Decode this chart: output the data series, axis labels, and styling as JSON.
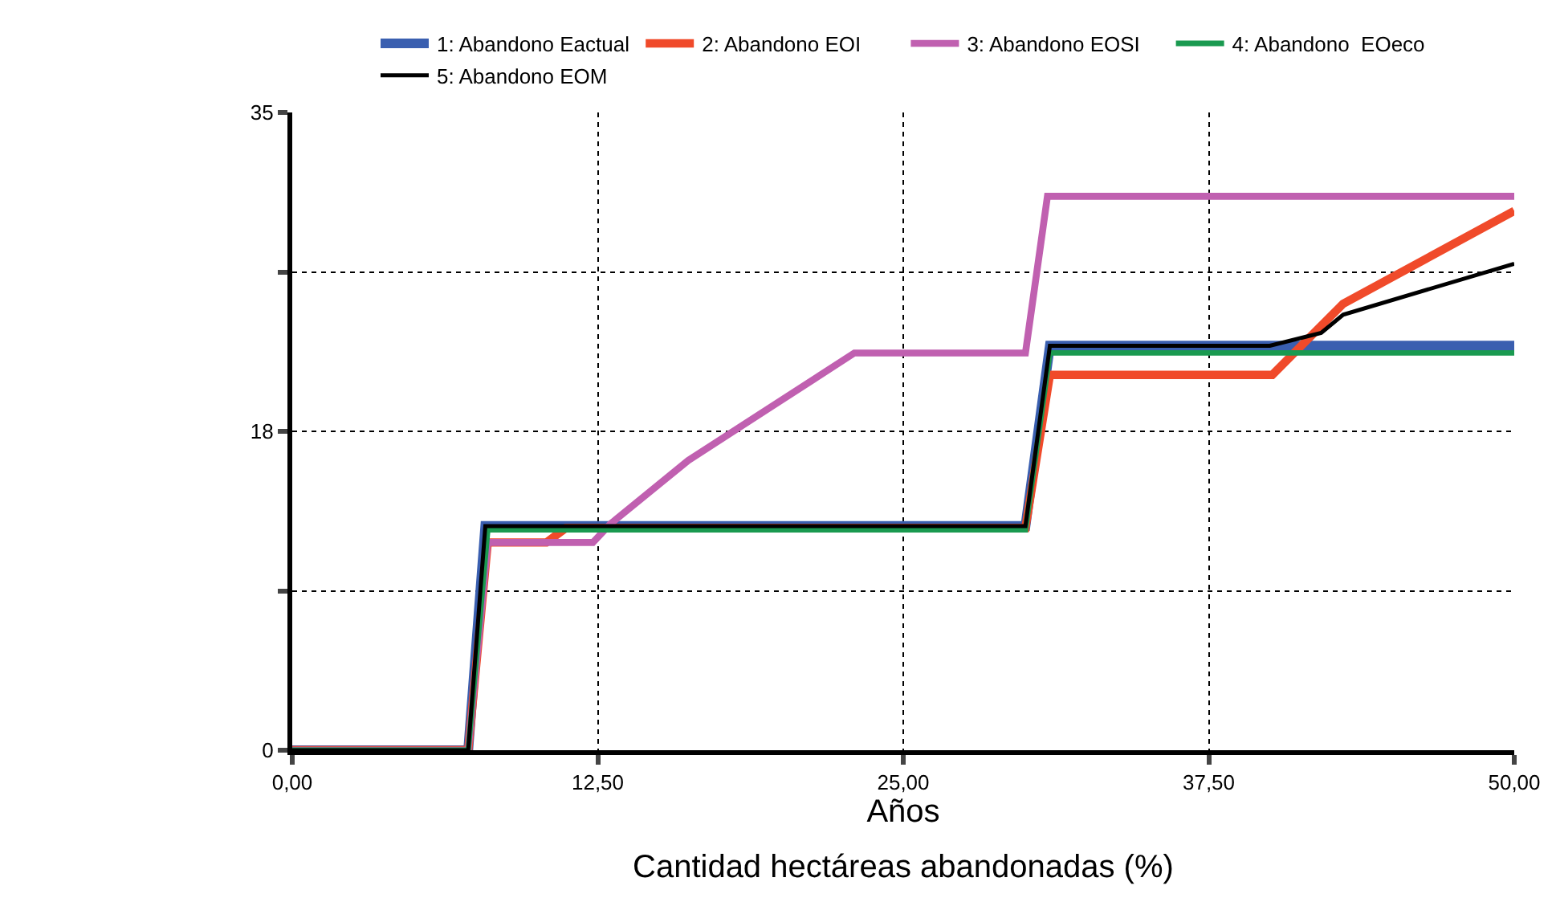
{
  "chart_data": {
    "type": "line",
    "xlabel": "Años",
    "annotations": [
      "Cantidad hectáreas abandonadas (%)"
    ],
    "xlim": [
      0,
      50
    ],
    "xticks": [
      {
        "value": 0,
        "label": "0,00"
      },
      {
        "value": 12.5,
        "label": "12,50"
      },
      {
        "value": 25,
        "label": "25,00"
      },
      {
        "value": 37.5,
        "label": "37,50"
      },
      {
        "value": 50,
        "label": "50,00"
      }
    ],
    "ylim": [
      0,
      35
    ],
    "yticks": [
      0,
      {
        "value": 8.75,
        "label": null
      },
      {
        "value": 17.5,
        "label": "18"
      },
      {
        "value": 26.25,
        "label": null
      },
      35
    ],
    "grid": true,
    "legend": "top",
    "line_style": "solid",
    "marker": "none",
    "series": [
      {
        "name": "1: Abandono Eactual",
        "color": "#3a5fb0",
        "x": [
          0,
          7.2,
          7.9,
          30,
          31,
          40,
          50
        ],
        "values": [
          0,
          0,
          12.3,
          12.3,
          22.2,
          22.2,
          22.2
        ]
      },
      {
        "name": "2: Abandono EOI",
        "color": "#f04a2a",
        "x": [
          0,
          7.2,
          8,
          10.4,
          11.2,
          30,
          31,
          40.1,
          43,
          50
        ],
        "values": [
          0,
          0,
          11.4,
          11.4,
          12.2,
          12.2,
          20.6,
          20.6,
          24.5,
          29.6
        ]
      },
      {
        "name": "3: Abandono EOSI",
        "color": "#c060b0",
        "x": [
          0,
          7.2,
          8,
          12.3,
          13,
          16.2,
          23,
          30,
          30.9,
          50
        ],
        "values": [
          0,
          0,
          11.4,
          11.4,
          12.4,
          15.9,
          21.8,
          21.8,
          30.4,
          30.4
        ]
      },
      {
        "name": "4: Abandono  EOeco",
        "color": "#1a9a50",
        "x": [
          0,
          7.2,
          8,
          30,
          31,
          50
        ],
        "values": [
          0,
          0,
          12.1,
          12.1,
          21.8,
          21.8
        ]
      },
      {
        "name": "5: Abandono EOM",
        "color": "#000000",
        "x": [
          0,
          7.2,
          7.9,
          30,
          31,
          40,
          42.1,
          43,
          50
        ],
        "values": [
          0,
          0,
          12.3,
          12.3,
          22.2,
          22.2,
          22.9,
          23.9,
          26.7
        ]
      }
    ]
  }
}
